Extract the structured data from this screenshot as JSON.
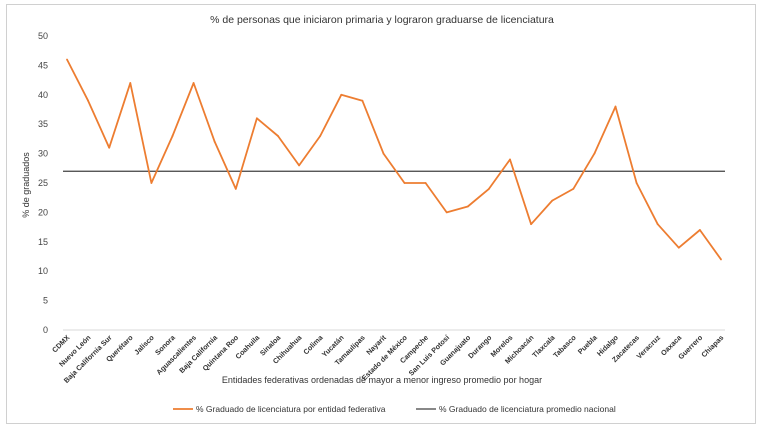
{
  "chart_data": {
    "type": "line",
    "title": "% de personas que iniciaron primaria y lograron graduarse de licenciatura",
    "xlabel": "Entidades federativas ordenadas de mayor a menor ingreso promedio por hogar",
    "ylabel": "% de graduados",
    "ylim": [
      0,
      50
    ],
    "yticks": [
      "0",
      "5",
      "10",
      "15",
      "20",
      "25",
      "30",
      "35",
      "40",
      "45",
      "50"
    ],
    "grid": false,
    "legend_position": "bottom",
    "categories": [
      "CDMX",
      "Nuevo León",
      "Baja California Sur",
      "Querétaro",
      "Jalisco",
      "Sonora",
      "Aguascalientes",
      "Baja California",
      "Quintana Roo",
      "Coahuila",
      "Sinaloa",
      "Chihuahua",
      "Colima",
      "Yucatán",
      "Tamaulipas",
      "Nayarit",
      "Estado de México",
      "Campeche",
      "San Luis Potosí",
      "Guanajuato",
      "Durango",
      "Morelos",
      "Michoacán",
      "Tlaxcala",
      "Tabasco",
      "Puebla",
      "Hidalgo",
      "Zacatecas",
      "Veracruz",
      "Oaxaca",
      "Guerrero",
      "Chiapas"
    ],
    "series": [
      {
        "name": "% Graduado de licenciatura por entidad federativa",
        "color": "#ED7D31",
        "values": [
          46,
          39,
          31,
          42,
          25,
          33,
          42,
          32,
          24,
          36,
          33,
          28,
          33,
          40,
          39,
          30,
          25,
          25,
          20,
          21,
          24,
          29,
          18,
          22,
          24,
          30,
          38,
          25,
          18,
          14,
          17,
          12
        ]
      },
      {
        "name": "% Graduado de licenciatura promedio nacional",
        "color": "#404040",
        "constant": 27
      }
    ]
  }
}
